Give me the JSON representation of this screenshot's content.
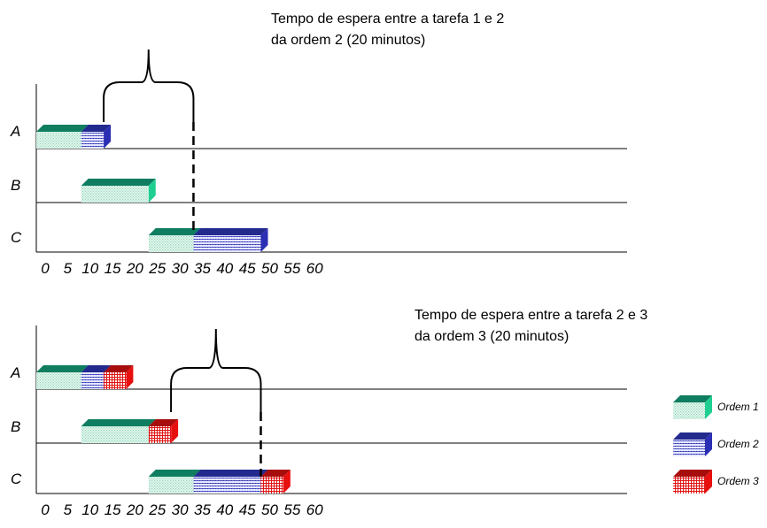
{
  "legend": [
    {
      "order": "1",
      "label": "Ordem 1"
    },
    {
      "order": "2",
      "label": "Ordem 2"
    },
    {
      "order": "3",
      "label": "Ordem 3"
    }
  ],
  "orders": {
    "1": {
      "top": "#0f7d5f",
      "front_base": "#dff5ec",
      "front_pattern": "#8fd3b6",
      "side": "#1fcf91",
      "pattern": "dots"
    },
    "2": {
      "top": "#232a8e",
      "front_base": "#e6e7ff",
      "front_pattern": "#5b61c9",
      "side": "#2b2fb3",
      "pattern": "lines"
    },
    "3": {
      "top": "#a80d0d",
      "front_base": "#ffffff",
      "front_pattern": "#e01515",
      "side": "#e80f0f",
      "pattern": "grid"
    }
  },
  "chart_data": [
    {
      "type": "gantt",
      "title": "",
      "annotation": [
        "Tempo de espera entre a tarefa 1 e 2",
        "da ordem 2 (20 minutos)"
      ],
      "wait": {
        "order": "2",
        "from": 15,
        "to": 35
      },
      "machines": [
        "A",
        "B",
        "C"
      ],
      "x_ticks": [
        0,
        5,
        10,
        15,
        20,
        25,
        30,
        35,
        40,
        45,
        50,
        55,
        60
      ],
      "xlim": [
        0,
        60
      ],
      "tasks": [
        {
          "machine": "A",
          "order": "1",
          "start": 0,
          "end": 10
        },
        {
          "machine": "A",
          "order": "2",
          "start": 10,
          "end": 15
        },
        {
          "machine": "B",
          "order": "1",
          "start": 10,
          "end": 25
        },
        {
          "machine": "C",
          "order": "1",
          "start": 25,
          "end": 35
        },
        {
          "machine": "C",
          "order": "2",
          "start": 35,
          "end": 50
        }
      ]
    },
    {
      "type": "gantt",
      "title": "",
      "annotation": [
        "Tempo de espera entre a tarefa 2 e 3",
        "da ordem 3 (20 minutos)"
      ],
      "wait": {
        "order": "3",
        "from": 30,
        "to": 50
      },
      "machines": [
        "A",
        "B",
        "C"
      ],
      "x_ticks": [
        0,
        5,
        10,
        15,
        20,
        25,
        30,
        35,
        40,
        45,
        50,
        55,
        60
      ],
      "xlim": [
        0,
        60
      ],
      "tasks": [
        {
          "machine": "A",
          "order": "1",
          "start": 0,
          "end": 10
        },
        {
          "machine": "A",
          "order": "2",
          "start": 10,
          "end": 15
        },
        {
          "machine": "A",
          "order": "3",
          "start": 15,
          "end": 20
        },
        {
          "machine": "B",
          "order": "1",
          "start": 10,
          "end": 25
        },
        {
          "machine": "B",
          "order": "3",
          "start": 25,
          "end": 30
        },
        {
          "machine": "C",
          "order": "1",
          "start": 25,
          "end": 35
        },
        {
          "machine": "C",
          "order": "2",
          "start": 35,
          "end": 50
        },
        {
          "machine": "C",
          "order": "3",
          "start": 50,
          "end": 55
        }
      ]
    }
  ]
}
